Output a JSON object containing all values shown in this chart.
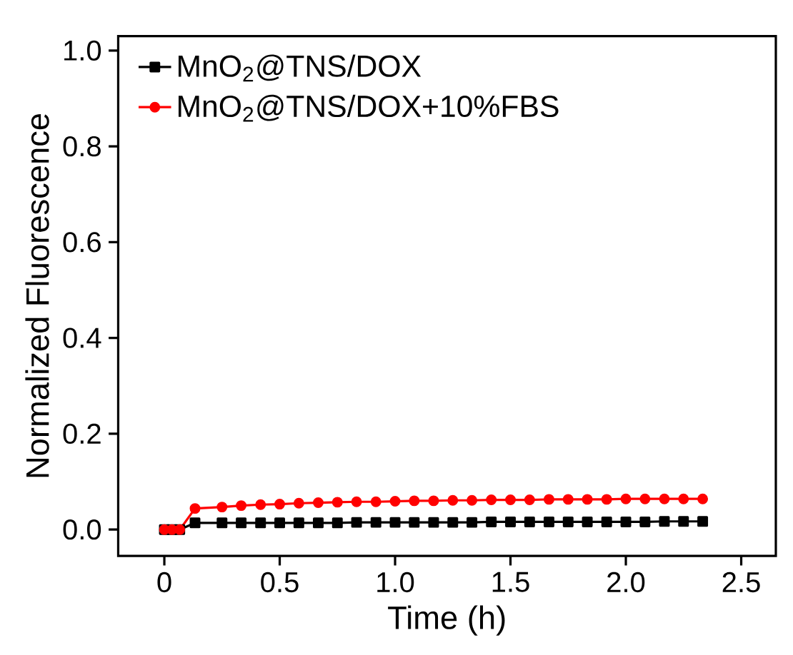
{
  "chart_data": {
    "type": "line",
    "xlabel": "Time (h)",
    "ylabel": "Normalized Fluorescence",
    "x": [
      0,
      0.033,
      0.067,
      0.133,
      0.25,
      0.333,
      0.417,
      0.5,
      0.583,
      0.667,
      0.75,
      0.833,
      0.917,
      1.0,
      1.083,
      1.167,
      1.25,
      1.333,
      1.417,
      1.5,
      1.583,
      1.667,
      1.75,
      1.833,
      1.917,
      2.0,
      2.083,
      2.167,
      2.25,
      2.333
    ],
    "series": [
      {
        "name": "MnO$_{2}$@TNS/DOX",
        "color": "#000000",
        "marker": "square",
        "values": [
          0,
          0,
          0,
          0.014,
          0.014,
          0.014,
          0.014,
          0.014,
          0.014,
          0.014,
          0.014,
          0.015,
          0.015,
          0.015,
          0.015,
          0.015,
          0.015,
          0.015,
          0.016,
          0.016,
          0.016,
          0.016,
          0.016,
          0.016,
          0.016,
          0.016,
          0.016,
          0.017,
          0.017,
          0.017
        ]
      },
      {
        "name": "MnO$_{2}$@TNS/DOX+10%FBS",
        "color": "#ff0000",
        "marker": "circle",
        "values": [
          0,
          0,
          0,
          0.044,
          0.047,
          0.05,
          0.052,
          0.053,
          0.055,
          0.056,
          0.057,
          0.058,
          0.058,
          0.059,
          0.06,
          0.06,
          0.061,
          0.061,
          0.062,
          0.062,
          0.062,
          0.063,
          0.063,
          0.063,
          0.063,
          0.064,
          0.064,
          0.064,
          0.064,
          0.064
        ]
      }
    ],
    "xlim": [
      -0.2,
      2.65
    ],
    "ylim": [
      -0.055,
      1.03
    ],
    "xticks": [
      0,
      0.5,
      {
        "value": 1,
        "label": "1.0"
      },
      1.5,
      {
        "value": 2,
        "label": "2.0"
      },
      2.5
    ],
    "yticks": [
      {
        "value": 0,
        "label": "0.0"
      },
      0.2,
      0.4,
      0.6,
      0.8,
      {
        "value": 1,
        "label": "1.0"
      }
    ],
    "legend": "top left",
    "grid": false,
    "line_style": "solid"
  }
}
